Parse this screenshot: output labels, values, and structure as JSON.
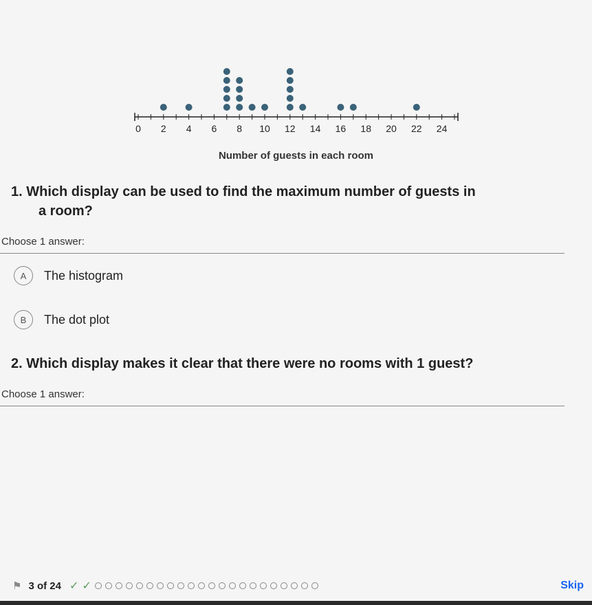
{
  "dotplot": {
    "type": "dotplot",
    "xlim": [
      0,
      25
    ],
    "tick_positions": [
      0,
      1,
      2,
      3,
      4,
      5,
      6,
      7,
      8,
      9,
      10,
      11,
      12,
      13,
      14,
      15,
      16,
      17,
      18,
      19,
      20,
      21,
      22,
      23,
      24,
      25
    ],
    "tick_labels": [
      "0",
      "2",
      "4",
      "6",
      "8",
      "10",
      "12",
      "14",
      "16",
      "18",
      "20",
      "22",
      "24"
    ],
    "tick_label_positions": [
      0,
      2,
      4,
      6,
      8,
      10,
      12,
      14,
      16,
      18,
      20,
      22,
      24
    ],
    "dot_color": "#3a6278",
    "axis_color": "#222222",
    "background_color": "#f5f5f5",
    "dot_radius": 5,
    "dot_vgap": 13,
    "tick_fontsize": 14,
    "data": [
      {
        "x": 2,
        "count": 1
      },
      {
        "x": 4,
        "count": 1
      },
      {
        "x": 7,
        "count": 5
      },
      {
        "x": 8,
        "count": 4
      },
      {
        "x": 9,
        "count": 1
      },
      {
        "x": 10,
        "count": 1
      },
      {
        "x": 12,
        "count": 5
      },
      {
        "x": 13,
        "count": 1
      },
      {
        "x": 16,
        "count": 1
      },
      {
        "x": 17,
        "count": 1
      },
      {
        "x": 22,
        "count": 1
      }
    ],
    "axis_title": "Number of guests in each room"
  },
  "question1": {
    "number": "1.",
    "text_line1": "Which display can be used to find the maximum number of guests in",
    "text_line2": "a room?",
    "choose_label": "Choose 1 answer:",
    "options": [
      {
        "letter": "A",
        "text": "The histogram"
      },
      {
        "letter": "B",
        "text": "The dot plot"
      }
    ]
  },
  "question2": {
    "number": "2.",
    "text": "Which display makes it clear that there were no rooms with 1 guest?",
    "choose_label": "Choose 1 answer:"
  },
  "footer": {
    "progress_text": "3 of 24",
    "completed": 2,
    "remaining": 22,
    "skip_label": "Skip"
  }
}
